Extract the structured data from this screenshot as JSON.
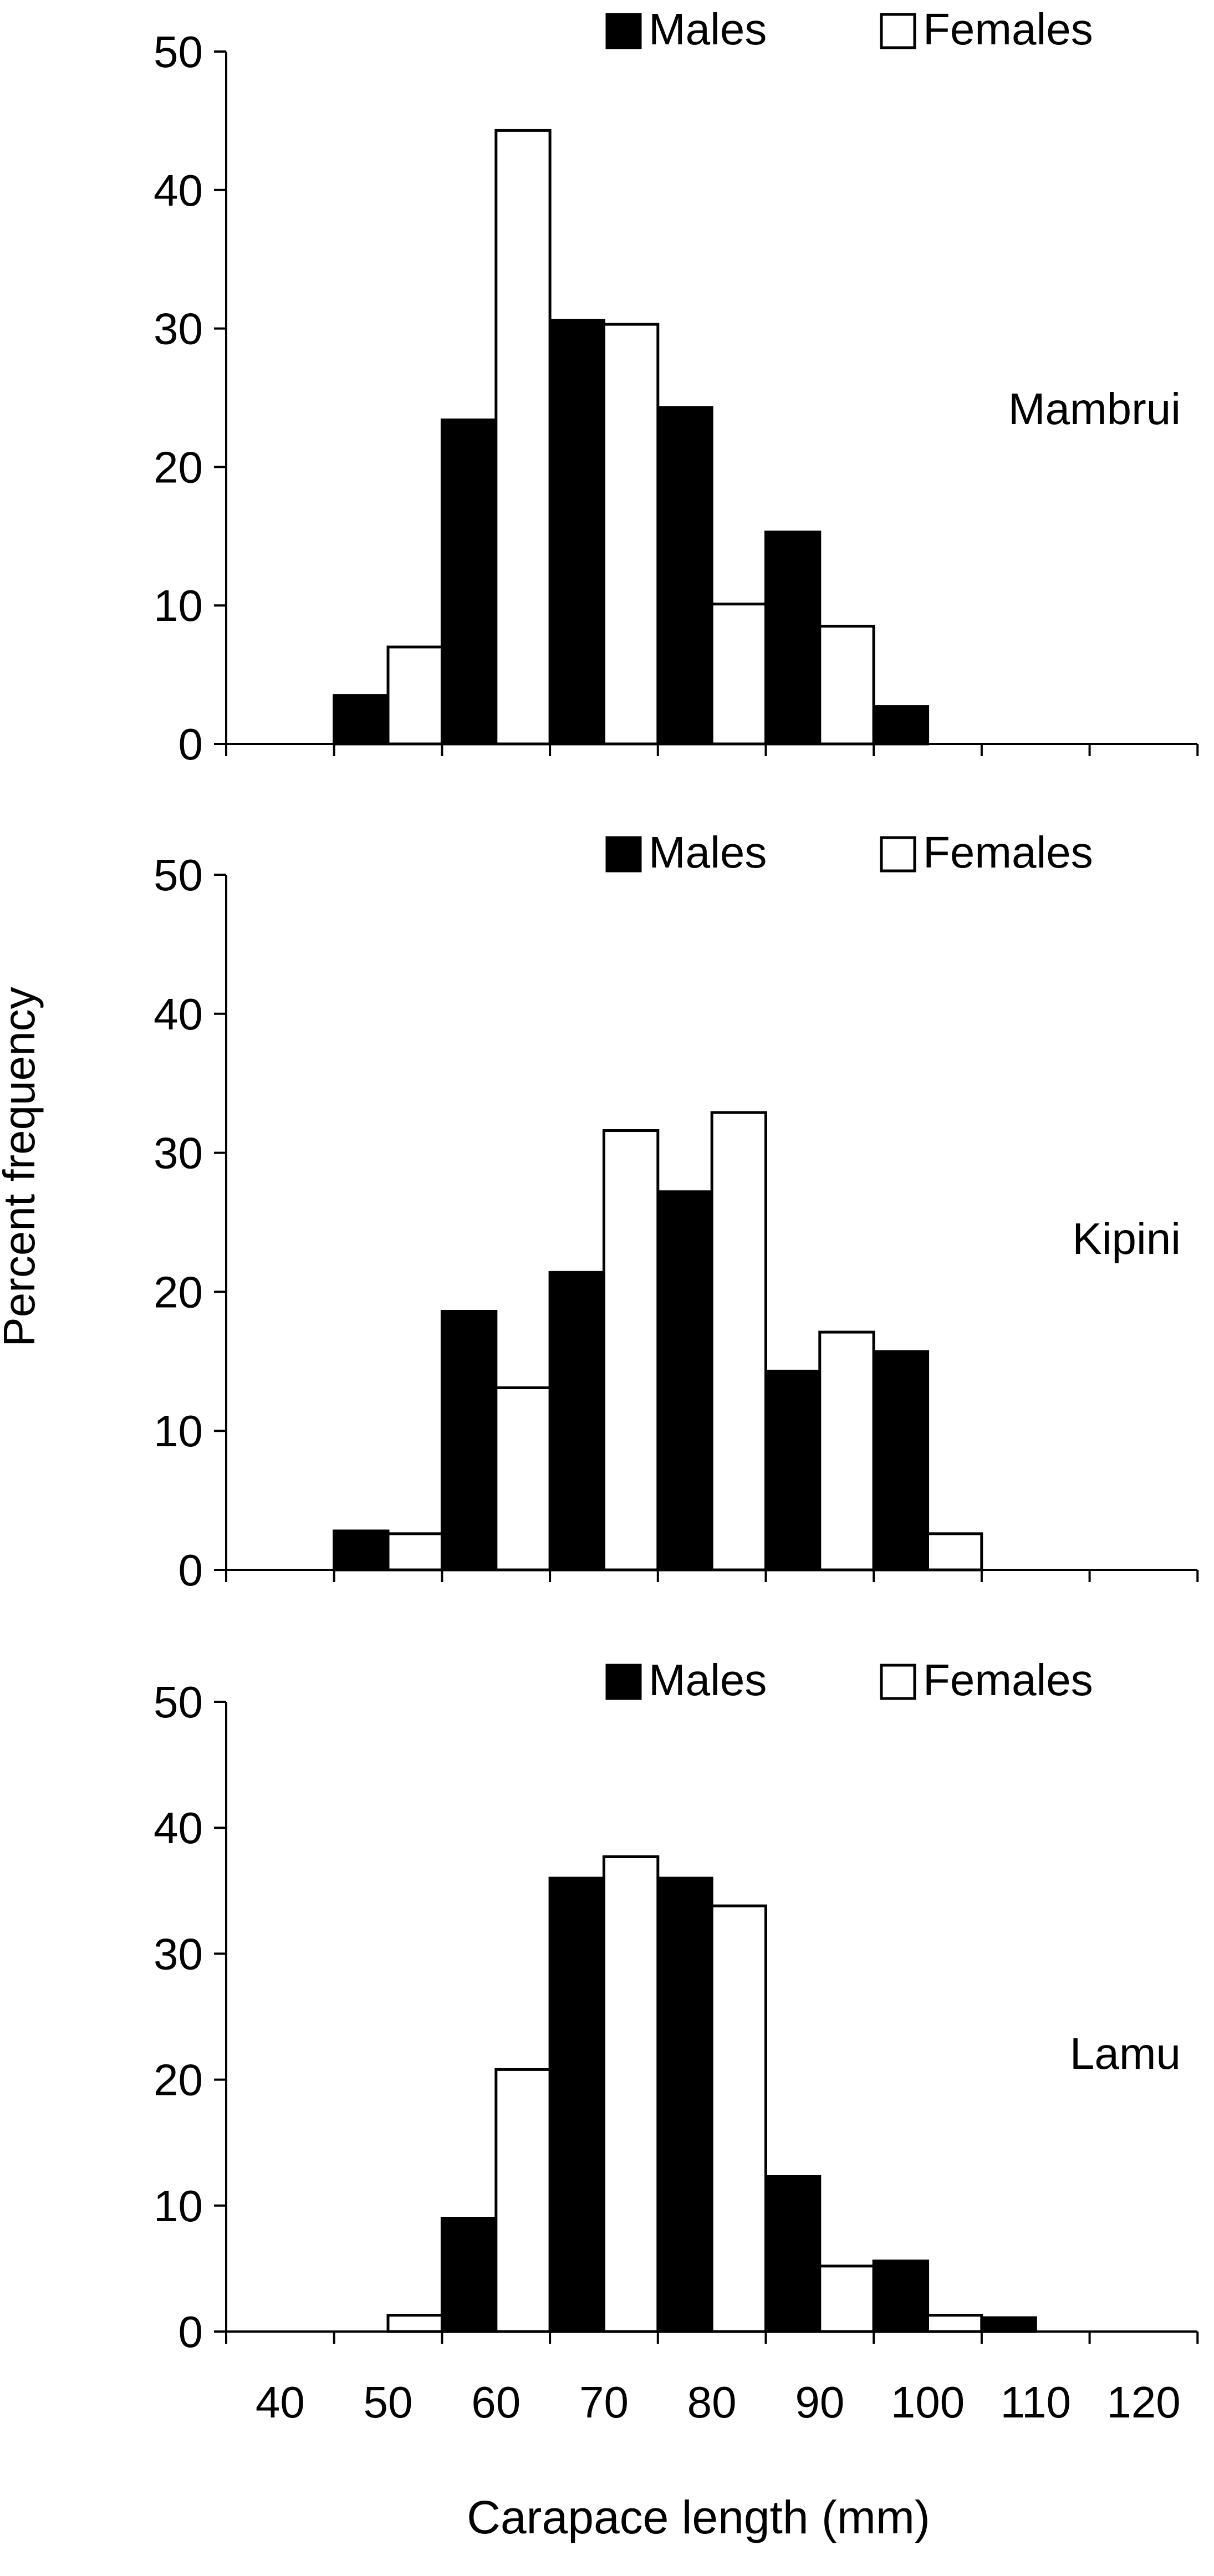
{
  "figure": {
    "ylabel": "Percent frequency",
    "xlabel": "Carapace length (mm)"
  },
  "legend": {
    "males": "Males",
    "females": "Females"
  },
  "colors": {
    "males": "#000000",
    "females": "#ffffff",
    "axis": "#000000"
  },
  "chart_data": [
    {
      "type": "bar",
      "title": "Mambrui",
      "categories": [
        "45",
        "50",
        "55",
        "60",
        "65",
        "70",
        "75",
        "80",
        "85",
        "90",
        "95",
        "100",
        "105"
      ],
      "series": [
        {
          "name": "Males",
          "values": [
            3.5,
            0,
            23.4,
            0,
            30.6,
            0,
            24.3,
            0,
            15.3,
            0,
            2.7,
            0,
            0
          ]
        },
        {
          "name": "Females",
          "values": [
            0,
            7,
            0,
            44.3,
            0,
            30.3,
            0,
            10.1,
            0,
            8.5,
            0,
            0,
            0
          ]
        }
      ],
      "yticks": [
        "0",
        "10",
        "20",
        "30",
        "40",
        "50"
      ],
      "ylim": [
        0,
        50
      ],
      "xlim": [
        35,
        125
      ],
      "legend_position": "top-right"
    },
    {
      "type": "bar",
      "title": "Kipini",
      "categories": [
        "45",
        "50",
        "55",
        "60",
        "65",
        "70",
        "75",
        "80",
        "85",
        "90",
        "95",
        "100",
        "105"
      ],
      "series": [
        {
          "name": "Males",
          "values": [
            2.8,
            0,
            18.6,
            0,
            21.4,
            0,
            27.2,
            0,
            14.3,
            0,
            15.7,
            0,
            0
          ]
        },
        {
          "name": "Females",
          "values": [
            0,
            2.6,
            0,
            13.1,
            0,
            31.6,
            0,
            32.9,
            0,
            17.1,
            0,
            2.6,
            0
          ]
        }
      ],
      "yticks": [
        "0",
        "10",
        "20",
        "30",
        "40",
        "50"
      ],
      "ylim": [
        0,
        50
      ],
      "xlim": [
        35,
        125
      ],
      "legend_position": "top-right"
    },
    {
      "type": "bar",
      "title": "Lamu",
      "categories": [
        "45",
        "50",
        "55",
        "60",
        "65",
        "70",
        "75",
        "80",
        "85",
        "90",
        "95",
        "100",
        "105"
      ],
      "series": [
        {
          "name": "Males",
          "values": [
            0,
            0,
            9,
            0,
            36,
            0,
            36,
            0,
            12.3,
            0,
            5.6,
            0,
            1.1
          ]
        },
        {
          "name": "Females",
          "values": [
            0,
            1.3,
            0,
            20.8,
            0,
            37.7,
            0,
            33.8,
            0,
            5.2,
            0,
            1.3,
            0
          ]
        }
      ],
      "yticks": [
        "0",
        "10",
        "20",
        "30",
        "40",
        "50"
      ],
      "ylim": [
        0,
        50
      ],
      "xlim": [
        35,
        125
      ],
      "xticks": [
        "40",
        "50",
        "60",
        "70",
        "80",
        "90",
        "100",
        "110",
        "120"
      ],
      "legend_position": "top-right"
    }
  ]
}
